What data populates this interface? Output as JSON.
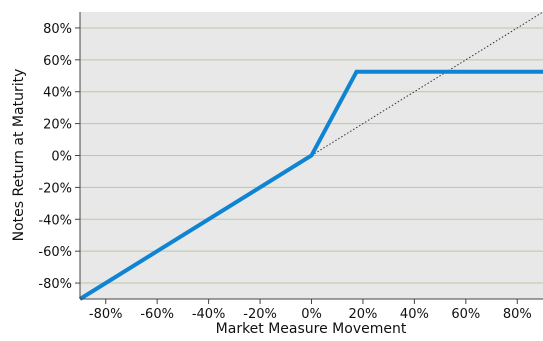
{
  "chart_data": {
    "type": "line",
    "title": "",
    "xlabel": "Market Measure Movement",
    "ylabel": "Notes Return at Maturity",
    "xlim": [
      -90,
      90
    ],
    "ylim": [
      -90,
      90
    ],
    "grid": true,
    "x_ticks": [
      -80,
      -60,
      -40,
      -20,
      0,
      20,
      40,
      60,
      80
    ],
    "x_tick_labels": [
      "-80%",
      "-60%",
      "-40%",
      "-20%",
      "0%",
      "20%",
      "40%",
      "60%",
      "80%"
    ],
    "y_ticks": [
      80,
      60,
      40,
      20,
      0,
      -20,
      -40,
      -60,
      -80
    ],
    "y_tick_labels": [
      "80%",
      "60%",
      "40%",
      "20%",
      "0%",
      "-20%",
      "-40%",
      "-60%",
      "-80%"
    ],
    "series": [
      {
        "style": "solid-thick",
        "color": "#0f84d2",
        "x": [
          -90,
          0,
          17.5,
          90
        ],
        "y": [
          -90,
          0,
          52.5,
          52.5
        ]
      },
      {
        "style": "dotted-thin",
        "color": "#333333",
        "x": [
          0,
          90
        ],
        "y": [
          0,
          90
        ]
      }
    ],
    "colors": {
      "plot_background": "#e8e8e8",
      "grid": "#bcc79c",
      "axis": "#444444"
    }
  }
}
